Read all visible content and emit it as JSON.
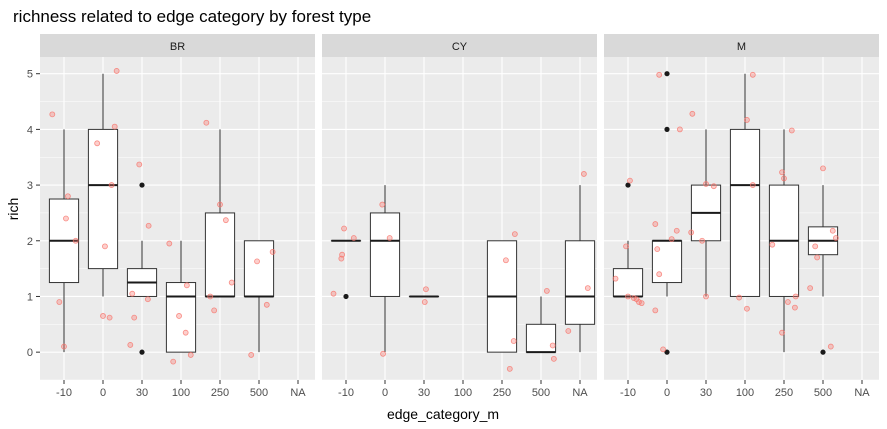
{
  "chart_data": {
    "type": "box",
    "title": "richness related to edge category by forest type",
    "xlabel": "edge_category_m",
    "ylabel": "rich",
    "categories": [
      "-10",
      "0",
      "30",
      "100",
      "250",
      "500",
      "NA"
    ],
    "ylim": [
      -0.5,
      5.3
    ],
    "yticks": [
      0,
      1,
      2,
      3,
      4,
      5
    ],
    "grid": true,
    "colors": {
      "panel_bg": "#ebebeb",
      "grid": "#ffffff",
      "strip_bg": "#d9d9d9",
      "box_fill": "#ffffff",
      "box_line": "#333333",
      "jitter": "#f8766d"
    },
    "panels": [
      {
        "name": "BR",
        "boxes": [
          {
            "cat": "-10",
            "min": 0,
            "q1": 1.25,
            "median": 2,
            "q3": 2.75,
            "max": 4,
            "outliers": []
          },
          {
            "cat": "0",
            "min": 1,
            "q1": 1.5,
            "median": 3,
            "q3": 4,
            "max": 5,
            "outliers": []
          },
          {
            "cat": "30",
            "min": 1,
            "q1": 1,
            "median": 1.25,
            "q3": 1.5,
            "max": 2,
            "outliers": [
              3,
              0
            ]
          },
          {
            "cat": "100",
            "min": 0,
            "q1": 0,
            "median": 1,
            "q3": 1.25,
            "max": 2,
            "outliers": []
          },
          {
            "cat": "250",
            "min": 1,
            "q1": 1,
            "median": 1,
            "q3": 2.5,
            "max": 4,
            "outliers": []
          },
          {
            "cat": "500",
            "min": 0,
            "q1": 1,
            "median": 1,
            "q3": 2,
            "max": 2,
            "outliers": []
          }
        ],
        "jitter": [
          {
            "cat": "-10",
            "y": 4.27,
            "dx": -0.3
          },
          {
            "cat": "-10",
            "y": 2.8,
            "dx": 0.1
          },
          {
            "cat": "-10",
            "y": 2.4,
            "dx": 0.05
          },
          {
            "cat": "-10",
            "y": 2.0,
            "dx": 0.3
          },
          {
            "cat": "-10",
            "y": 0.9,
            "dx": -0.12
          },
          {
            "cat": "-10",
            "y": 0.1,
            "dx": 0.0
          },
          {
            "cat": "0",
            "y": 5.05,
            "dx": 0.35
          },
          {
            "cat": "0",
            "y": 4.05,
            "dx": 0.3
          },
          {
            "cat": "0",
            "y": 3.75,
            "dx": -0.15
          },
          {
            "cat": "0",
            "y": 3.0,
            "dx": 0.22
          },
          {
            "cat": "0",
            "y": 1.9,
            "dx": 0.05
          },
          {
            "cat": "0",
            "y": 0.65,
            "dx": 0.0
          },
          {
            "cat": "0",
            "y": 0.62,
            "dx": 0.17
          },
          {
            "cat": "30",
            "y": 3.37,
            "dx": -0.07
          },
          {
            "cat": "30",
            "y": 2.27,
            "dx": 0.17
          },
          {
            "cat": "30",
            "y": 1.05,
            "dx": -0.25
          },
          {
            "cat": "30",
            "y": 0.95,
            "dx": 0.15
          },
          {
            "cat": "30",
            "y": 0.62,
            "dx": -0.2
          },
          {
            "cat": "30",
            "y": 0.13,
            "dx": -0.3
          },
          {
            "cat": "100",
            "y": 1.95,
            "dx": -0.3
          },
          {
            "cat": "100",
            "y": 1.2,
            "dx": 0.15
          },
          {
            "cat": "100",
            "y": 0.65,
            "dx": -0.05
          },
          {
            "cat": "100",
            "y": 0.35,
            "dx": 0.12
          },
          {
            "cat": "100",
            "y": -0.05,
            "dx": 0.25
          },
          {
            "cat": "100",
            "y": -0.17,
            "dx": -0.2
          },
          {
            "cat": "250",
            "y": 4.12,
            "dx": -0.35
          },
          {
            "cat": "250",
            "y": 2.65,
            "dx": 0.0
          },
          {
            "cat": "250",
            "y": 2.37,
            "dx": 0.15
          },
          {
            "cat": "250",
            "y": 1.25,
            "dx": 0.3
          },
          {
            "cat": "250",
            "y": 1.0,
            "dx": -0.25
          },
          {
            "cat": "250",
            "y": 0.75,
            "dx": -0.15
          },
          {
            "cat": "500",
            "y": 1.8,
            "dx": 0.35
          },
          {
            "cat": "500",
            "y": 1.63,
            "dx": -0.05
          },
          {
            "cat": "500",
            "y": 0.85,
            "dx": 0.2
          },
          {
            "cat": "500",
            "y": -0.05,
            "dx": -0.2
          }
        ]
      },
      {
        "name": "CY",
        "boxes": [
          {
            "cat": "-10",
            "min": 2,
            "q1": 2,
            "median": 2,
            "q3": 2,
            "max": 2,
            "outliers": [
              1
            ]
          },
          {
            "cat": "0",
            "min": 0,
            "q1": 1,
            "median": 2,
            "q3": 2.5,
            "max": 3,
            "outliers": []
          },
          {
            "cat": "30",
            "min": 1,
            "q1": 1,
            "median": 1,
            "q3": 1,
            "max": 1,
            "outliers": []
          },
          {
            "cat": "250",
            "min": 0,
            "q1": 0,
            "median": 1,
            "q3": 2,
            "max": 2,
            "outliers": []
          },
          {
            "cat": "500",
            "min": 0,
            "q1": 0,
            "median": 0,
            "q3": 0.5,
            "max": 1,
            "outliers": []
          },
          {
            "cat": "NA",
            "min": 0,
            "q1": 0.5,
            "median": 1,
            "q3": 2,
            "max": 3,
            "outliers": []
          }
        ],
        "jitter": [
          {
            "cat": "-10",
            "y": 2.22,
            "dx": -0.05
          },
          {
            "cat": "-10",
            "y": 2.05,
            "dx": 0.2
          },
          {
            "cat": "-10",
            "y": 1.75,
            "dx": -0.1
          },
          {
            "cat": "-10",
            "y": 1.68,
            "dx": -0.12
          },
          {
            "cat": "-10",
            "y": 1.05,
            "dx": -0.32
          },
          {
            "cat": "0",
            "y": 2.65,
            "dx": -0.07
          },
          {
            "cat": "0",
            "y": 2.05,
            "dx": 0.12
          },
          {
            "cat": "0",
            "y": -0.03,
            "dx": -0.05
          },
          {
            "cat": "30",
            "y": 1.13,
            "dx": 0.05
          },
          {
            "cat": "30",
            "y": 0.9,
            "dx": 0.02
          },
          {
            "cat": "250",
            "y": 2.12,
            "dx": 0.33
          },
          {
            "cat": "250",
            "y": 1.65,
            "dx": 0.1
          },
          {
            "cat": "250",
            "y": 0.2,
            "dx": 0.3
          },
          {
            "cat": "250",
            "y": -0.3,
            "dx": 0.2
          },
          {
            "cat": "500",
            "y": 1.1,
            "dx": 0.15
          },
          {
            "cat": "500",
            "y": 0.12,
            "dx": 0.3
          },
          {
            "cat": "500",
            "y": -0.12,
            "dx": 0.33
          },
          {
            "cat": "NA",
            "y": 3.2,
            "dx": 0.1
          },
          {
            "cat": "NA",
            "y": 1.15,
            "dx": 0.2
          },
          {
            "cat": "NA",
            "y": 0.38,
            "dx": -0.3
          }
        ]
      },
      {
        "name": "M",
        "boxes": [
          {
            "cat": "-10",
            "min": 1,
            "q1": 1,
            "median": 1,
            "q3": 1.5,
            "max": 2,
            "outliers": [
              3
            ]
          },
          {
            "cat": "0",
            "min": 1,
            "q1": 1.25,
            "median": 2,
            "q3": 2,
            "max": 2,
            "outliers": [
              5,
              4,
              0
            ]
          },
          {
            "cat": "30",
            "min": 1,
            "q1": 2,
            "median": 2.5,
            "q3": 3,
            "max": 4,
            "outliers": []
          },
          {
            "cat": "100",
            "min": 1,
            "q1": 1,
            "median": 3,
            "q3": 4,
            "max": 5,
            "outliers": []
          },
          {
            "cat": "250",
            "min": 0,
            "q1": 1,
            "median": 2,
            "q3": 3,
            "max": 4,
            "outliers": []
          },
          {
            "cat": "500",
            "min": 1,
            "q1": 1.75,
            "median": 2,
            "q3": 2.25,
            "max": 3,
            "outliers": [
              0
            ]
          }
        ],
        "jitter": [
          {
            "cat": "-10",
            "y": 3.08,
            "dx": 0.05
          },
          {
            "cat": "-10",
            "y": 1.9,
            "dx": -0.05
          },
          {
            "cat": "-10",
            "y": 1.32,
            "dx": -0.32
          },
          {
            "cat": "-10",
            "y": 1.0,
            "dx": 0.0
          },
          {
            "cat": "-10",
            "y": 0.97,
            "dx": 0.15
          },
          {
            "cat": "-10",
            "y": 0.95,
            "dx": 0.22
          },
          {
            "cat": "-10",
            "y": 0.9,
            "dx": 0.28
          },
          {
            "cat": "-10",
            "y": 0.88,
            "dx": 0.35
          },
          {
            "cat": "0",
            "y": 4.98,
            "dx": -0.2
          },
          {
            "cat": "0",
            "y": 4.0,
            "dx": 0.33
          },
          {
            "cat": "0",
            "y": 2.3,
            "dx": -0.3
          },
          {
            "cat": "0",
            "y": 2.18,
            "dx": 0.25
          },
          {
            "cat": "0",
            "y": 2.03,
            "dx": 0.12
          },
          {
            "cat": "0",
            "y": 1.85,
            "dx": -0.25
          },
          {
            "cat": "0",
            "y": 1.4,
            "dx": -0.2
          },
          {
            "cat": "0",
            "y": 0.75,
            "dx": -0.3
          },
          {
            "cat": "0",
            "y": 0.05,
            "dx": -0.1
          },
          {
            "cat": "30",
            "y": 4.28,
            "dx": -0.35
          },
          {
            "cat": "30",
            "y": 3.02,
            "dx": 0.0
          },
          {
            "cat": "30",
            "y": 2.98,
            "dx": 0.2
          },
          {
            "cat": "30",
            "y": 2.15,
            "dx": -0.38
          },
          {
            "cat": "30",
            "y": 2.0,
            "dx": -0.1
          },
          {
            "cat": "30",
            "y": 1.0,
            "dx": 0.0
          },
          {
            "cat": "100",
            "y": 4.98,
            "dx": 0.2
          },
          {
            "cat": "100",
            "y": 4.17,
            "dx": 0.05
          },
          {
            "cat": "100",
            "y": 3.0,
            "dx": 0.2
          },
          {
            "cat": "100",
            "y": 0.98,
            "dx": -0.15
          },
          {
            "cat": "100",
            "y": 0.78,
            "dx": 0.05
          },
          {
            "cat": "250",
            "y": 3.98,
            "dx": 0.2
          },
          {
            "cat": "250",
            "y": 3.23,
            "dx": -0.05
          },
          {
            "cat": "250",
            "y": 3.12,
            "dx": 0.0
          },
          {
            "cat": "250",
            "y": 1.93,
            "dx": -0.3
          },
          {
            "cat": "250",
            "y": 1.0,
            "dx": 0.3
          },
          {
            "cat": "250",
            "y": 0.9,
            "dx": 0.1
          },
          {
            "cat": "250",
            "y": 0.8,
            "dx": 0.28
          },
          {
            "cat": "250",
            "y": 0.35,
            "dx": -0.05
          },
          {
            "cat": "500",
            "y": 3.3,
            "dx": 0.0
          },
          {
            "cat": "500",
            "y": 2.18,
            "dx": 0.25
          },
          {
            "cat": "500",
            "y": 2.05,
            "dx": 0.33
          },
          {
            "cat": "500",
            "y": 1.9,
            "dx": -0.2
          },
          {
            "cat": "500",
            "y": 1.7,
            "dx": -0.15
          },
          {
            "cat": "500",
            "y": 1.15,
            "dx": -0.33
          },
          {
            "cat": "500",
            "y": 0.1,
            "dx": 0.2
          }
        ]
      }
    ]
  }
}
